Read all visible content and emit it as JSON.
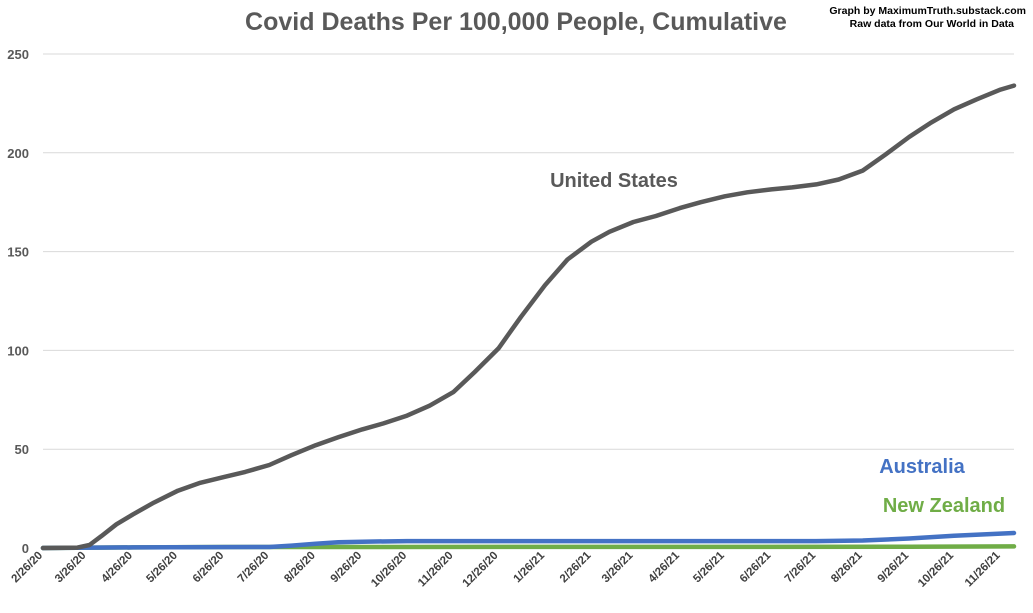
{
  "chart_data": {
    "type": "line",
    "title": "Covid Deaths Per 100,000 People, Cumulative",
    "credit_lines": [
      "Graph by MaximumTruth.substack.com",
      "Raw data from Our World in Data"
    ],
    "xlabel": "",
    "ylabel": "",
    "ylim": [
      0,
      250
    ],
    "yticks": [
      "0",
      "50",
      "100",
      "150",
      "200",
      "250"
    ],
    "xlim": [
      "2020-02-26",
      "2021-12-05"
    ],
    "x_tick_labels": [
      "2/26/20",
      "3/26/20",
      "4/26/20",
      "5/26/20",
      "6/26/20",
      "7/26/20",
      "8/26/20",
      "9/26/20",
      "10/26/20",
      "11/26/20",
      "12/26/20",
      "1/26/21",
      "2/26/21",
      "3/26/21",
      "4/26/21",
      "5/26/21",
      "6/26/21",
      "7/26/21",
      "8/26/21",
      "9/26/21",
      "10/26/21",
      "11/26/21"
    ],
    "x_tick_dates": [
      "2020-02-26",
      "2020-03-26",
      "2020-04-26",
      "2020-05-26",
      "2020-06-26",
      "2020-07-26",
      "2020-08-26",
      "2020-09-26",
      "2020-10-26",
      "2020-11-26",
      "2020-12-26",
      "2021-01-26",
      "2021-02-26",
      "2021-03-26",
      "2021-04-26",
      "2021-05-26",
      "2021-06-26",
      "2021-07-26",
      "2021-08-26",
      "2021-09-26",
      "2021-10-26",
      "2021-11-26"
    ],
    "grid": true,
    "legend": "inline labels",
    "series": [
      {
        "name": "United States",
        "color": "#595959",
        "label_color": "#595959",
        "points": [
          [
            "2020-02-26",
            0
          ],
          [
            "2020-03-20",
            0.2
          ],
          [
            "2020-03-28",
            1.5
          ],
          [
            "2020-04-05",
            6
          ],
          [
            "2020-04-15",
            12
          ],
          [
            "2020-04-26",
            17
          ],
          [
            "2020-05-10",
            23
          ],
          [
            "2020-05-26",
            29
          ],
          [
            "2020-06-10",
            33
          ],
          [
            "2020-06-26",
            36
          ],
          [
            "2020-07-10",
            38.5
          ],
          [
            "2020-07-26",
            42
          ],
          [
            "2020-08-10",
            47
          ],
          [
            "2020-08-26",
            52
          ],
          [
            "2020-09-10",
            56
          ],
          [
            "2020-09-26",
            60
          ],
          [
            "2020-10-10",
            63
          ],
          [
            "2020-10-26",
            67
          ],
          [
            "2020-11-10",
            72
          ],
          [
            "2020-11-26",
            79
          ],
          [
            "2020-12-10",
            89
          ],
          [
            "2020-12-26",
            101
          ],
          [
            "2021-01-10",
            117
          ],
          [
            "2021-01-26",
            133
          ],
          [
            "2021-02-10",
            146
          ],
          [
            "2021-02-26",
            155
          ],
          [
            "2021-03-10",
            160
          ],
          [
            "2021-03-26",
            165
          ],
          [
            "2021-04-10",
            168
          ],
          [
            "2021-04-26",
            172
          ],
          [
            "2021-05-10",
            175
          ],
          [
            "2021-05-26",
            178
          ],
          [
            "2021-06-10",
            180
          ],
          [
            "2021-06-26",
            181.5
          ],
          [
            "2021-07-10",
            182.5
          ],
          [
            "2021-07-26",
            184
          ],
          [
            "2021-08-10",
            186.5
          ],
          [
            "2021-08-26",
            191
          ],
          [
            "2021-09-10",
            199
          ],
          [
            "2021-09-26",
            208
          ],
          [
            "2021-10-10",
            215
          ],
          [
            "2021-10-26",
            222
          ],
          [
            "2021-11-10",
            227
          ],
          [
            "2021-11-26",
            232
          ],
          [
            "2021-12-05",
            234
          ]
        ]
      },
      {
        "name": "Australia",
        "color": "#4472c4",
        "label_color": "#4472c4",
        "points": [
          [
            "2020-02-26",
            0
          ],
          [
            "2020-04-26",
            0.3
          ],
          [
            "2020-07-26",
            0.5
          ],
          [
            "2020-08-10",
            1.2
          ],
          [
            "2020-08-26",
            2.2
          ],
          [
            "2020-09-10",
            2.9
          ],
          [
            "2020-09-26",
            3.2
          ],
          [
            "2020-10-26",
            3.5
          ],
          [
            "2021-07-26",
            3.5
          ],
          [
            "2021-08-26",
            3.8
          ],
          [
            "2021-09-26",
            4.8
          ],
          [
            "2021-10-26",
            6.2
          ],
          [
            "2021-11-26",
            7.3
          ],
          [
            "2021-12-05",
            7.6
          ]
        ]
      },
      {
        "name": "New Zealand",
        "color": "#70ad47",
        "label_color": "#70ad47",
        "points": [
          [
            "2020-02-26",
            0
          ],
          [
            "2020-04-26",
            0.3
          ],
          [
            "2020-06-26",
            0.5
          ],
          [
            "2021-09-26",
            0.6
          ],
          [
            "2021-12-05",
            0.8
          ]
        ]
      }
    ]
  }
}
